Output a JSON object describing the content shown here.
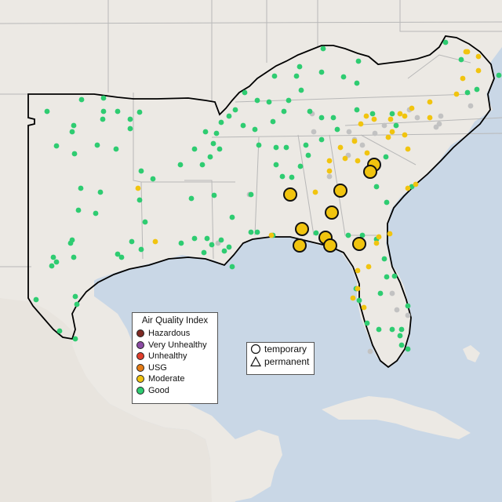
{
  "colors": {
    "water": "#c9d7e6",
    "land": "#ece9e4",
    "region": "#e6e2dc",
    "border": "#b8b8b8",
    "outline": "#000000"
  },
  "legend": {
    "title": "Air Quality Index",
    "items": [
      {
        "label": "Hazardous",
        "color": "#7e2a24"
      },
      {
        "label": "Very Unhealthy",
        "color": "#8b4aa3"
      },
      {
        "label": "Unhealthy",
        "color": "#e03d2b"
      },
      {
        "label": "USG",
        "color": "#e57c15"
      },
      {
        "label": "Moderate",
        "color": "#f1c40f"
      },
      {
        "label": "Good",
        "color": "#2ecc71"
      }
    ]
  },
  "type_legend": {
    "temporary_label": "temporary",
    "permanent_label": "permanent"
  },
  "monitors": {
    "good_color": "#2ecc71",
    "moderate_color": "#f1c40f",
    "nodata_color": "#c2c2c2",
    "temporary_moderate": [
      "temporary-1",
      "temporary-2",
      "temporary-3",
      "temporary-4",
      "temporary-5",
      "temporary-6",
      "temporary-7",
      "temporary-8",
      "temporary-9",
      "temporary-10",
      "temporary-11"
    ]
  }
}
